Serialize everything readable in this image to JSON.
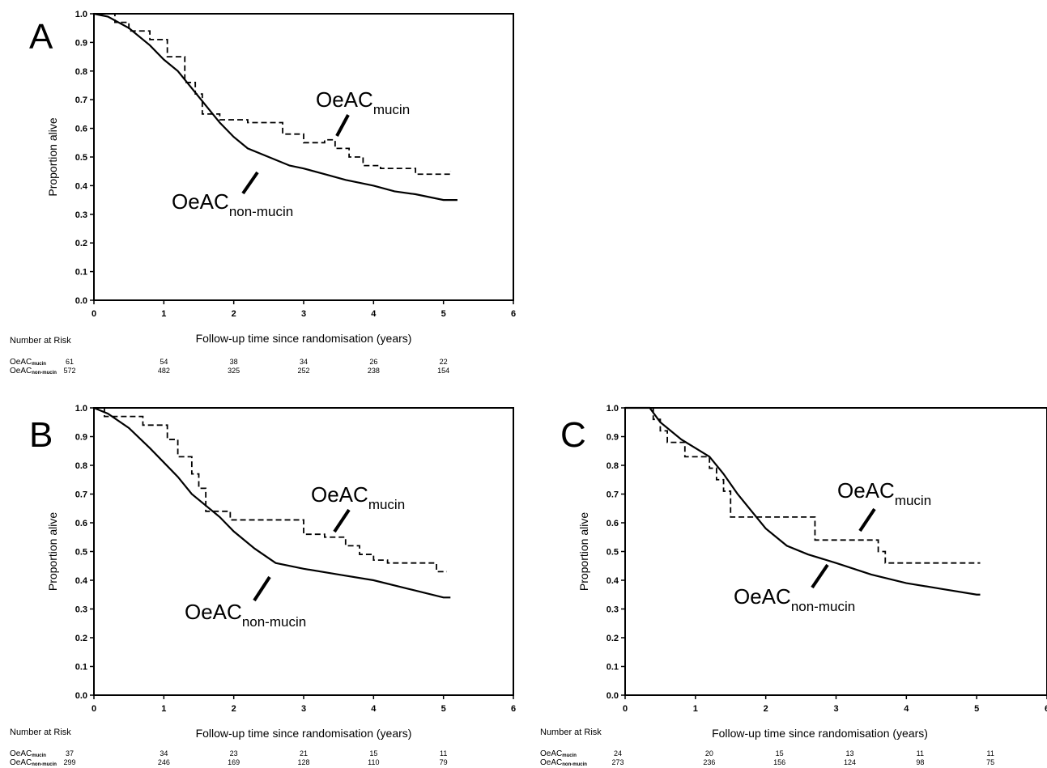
{
  "figure": {
    "ylabel": "Proportion alive",
    "xlabel": "Follow-up time since randomisation (years)",
    "risk_title": "Number at Risk",
    "risk_rows": [
      {
        "name": "OeAC",
        "sub": "mucin"
      },
      {
        "name": "OeAC",
        "sub": "non-mucin"
      }
    ]
  },
  "chart_data": [
    {
      "panel": "A",
      "type": "line",
      "xlabel": "Follow-up time since randomisation (years)",
      "ylabel": "Proportion alive",
      "xlim": [
        0,
        6
      ],
      "ylim": [
        0,
        1
      ],
      "x_ticks": [
        "0",
        "1",
        "2",
        "3",
        "4",
        "5",
        "6"
      ],
      "y_ticks": [
        "0.0",
        "0.1",
        "0.2",
        "0.3",
        "0.4",
        "0.5",
        "0.6",
        "0.7",
        "0.8",
        "0.9",
        "1.0"
      ],
      "annotations": [
        {
          "name": "OeAC",
          "sub": "mucin"
        },
        {
          "name": "OeAC",
          "sub": "non-mucin"
        }
      ],
      "series": [
        {
          "style": "dashed",
          "label_index": 0,
          "step": true,
          "x": [
            0,
            0.3,
            0.5,
            0.8,
            1.05,
            1.3,
            1.45,
            1.55,
            1.8,
            2.2,
            2.7,
            3.0,
            3.3,
            3.45,
            3.65,
            3.85,
            4.1,
            4.6,
            5.1
          ],
          "y": [
            1.0,
            0.97,
            0.94,
            0.91,
            0.85,
            0.76,
            0.72,
            0.65,
            0.63,
            0.62,
            0.58,
            0.55,
            0.56,
            0.53,
            0.5,
            0.47,
            0.46,
            0.44,
            0.45
          ]
        },
        {
          "style": "solid",
          "label_index": 1,
          "step": false,
          "x": [
            0,
            0.2,
            0.5,
            0.8,
            1.0,
            1.2,
            1.4,
            1.6,
            1.8,
            2.0,
            2.2,
            2.5,
            2.8,
            3.0,
            3.3,
            3.6,
            4.0,
            4.3,
            4.6,
            5.0,
            5.2
          ],
          "y": [
            1.0,
            0.99,
            0.95,
            0.89,
            0.84,
            0.8,
            0.74,
            0.68,
            0.62,
            0.57,
            0.53,
            0.5,
            0.47,
            0.46,
            0.44,
            0.42,
            0.4,
            0.38,
            0.37,
            0.35,
            0.35
          ]
        }
      ],
      "at_risk": {
        "mucin": [
          "61",
          "54",
          "38",
          "34",
          "26",
          "22"
        ],
        "non_mucin": [
          "572",
          "482",
          "325",
          "252",
          "238",
          "154"
        ]
      }
    },
    {
      "panel": "B",
      "type": "line",
      "xlabel": "Follow-up time since randomisation (years)",
      "ylabel": "Proportion alive",
      "xlim": [
        0,
        6
      ],
      "ylim": [
        0,
        1
      ],
      "x_ticks": [
        "0",
        "1",
        "2",
        "3",
        "4",
        "5",
        "6"
      ],
      "y_ticks": [
        "0.0",
        "0.1",
        "0.2",
        "0.3",
        "0.4",
        "0.5",
        "0.6",
        "0.7",
        "0.8",
        "0.9",
        "1.0"
      ],
      "annotations": [
        {
          "name": "OeAC",
          "sub": "mucin"
        },
        {
          "name": "OeAC",
          "sub": "non-mucin"
        }
      ],
      "series": [
        {
          "style": "dashed",
          "label_index": 0,
          "step": true,
          "x": [
            0,
            0.15,
            0.35,
            0.7,
            1.05,
            1.2,
            1.4,
            1.5,
            1.6,
            1.95,
            2.35,
            3.0,
            3.3,
            3.6,
            3.8,
            4.0,
            4.2,
            4.5,
            4.9,
            5.05
          ],
          "y": [
            1.0,
            0.97,
            0.97,
            0.94,
            0.89,
            0.83,
            0.77,
            0.72,
            0.64,
            0.61,
            0.61,
            0.56,
            0.55,
            0.52,
            0.49,
            0.47,
            0.46,
            0.46,
            0.43,
            0.43
          ]
        },
        {
          "style": "solid",
          "label_index": 1,
          "step": false,
          "x": [
            0,
            0.2,
            0.5,
            0.8,
            1.0,
            1.2,
            1.4,
            1.6,
            1.8,
            2.0,
            2.3,
            2.6,
            3.0,
            3.5,
            4.0,
            4.5,
            5.0,
            5.1
          ],
          "y": [
            1.0,
            0.98,
            0.93,
            0.86,
            0.81,
            0.76,
            0.7,
            0.66,
            0.62,
            0.57,
            0.51,
            0.46,
            0.44,
            0.42,
            0.4,
            0.37,
            0.34,
            0.34
          ]
        }
      ],
      "at_risk": {
        "mucin": [
          "37",
          "34",
          "23",
          "21",
          "15",
          "11"
        ],
        "non_mucin": [
          "299",
          "246",
          "169",
          "128",
          "110",
          "79"
        ]
      }
    },
    {
      "panel": "C",
      "type": "line",
      "xlabel": "Follow-up time since randomisation (years)",
      "ylabel": "Proportion alive",
      "xlim": [
        0,
        6
      ],
      "ylim": [
        0,
        1
      ],
      "x_ticks": [
        "0",
        "1",
        "2",
        "3",
        "4",
        "5",
        "6"
      ],
      "y_ticks": [
        "0.0",
        "0.1",
        "0.2",
        "0.3",
        "0.4",
        "0.5",
        "0.6",
        "0.7",
        "0.8",
        "0.9",
        "1.0"
      ],
      "annotations": [
        {
          "name": "OeAC",
          "sub": "mucin"
        },
        {
          "name": "OeAC",
          "sub": "non-mucin"
        }
      ],
      "series": [
        {
          "style": "dashed",
          "label_index": 0,
          "step": true,
          "x": [
            0,
            0.4,
            0.5,
            0.6,
            0.85,
            1.2,
            1.3,
            1.4,
            1.5,
            1.9,
            2.7,
            3.6,
            3.7,
            3.8,
            5.05
          ],
          "y": [
            1.0,
            0.96,
            0.92,
            0.88,
            0.83,
            0.79,
            0.75,
            0.71,
            0.62,
            0.62,
            0.54,
            0.5,
            0.46,
            0.46,
            0.46
          ]
        },
        {
          "style": "solid",
          "label_index": 1,
          "step": false,
          "x": [
            0,
            0.35,
            0.5,
            0.8,
            1.0,
            1.2,
            1.4,
            1.6,
            1.8,
            2.0,
            2.3,
            2.6,
            3.0,
            3.5,
            4.0,
            4.5,
            5.0,
            5.05
          ],
          "y": [
            1.0,
            1.0,
            0.95,
            0.89,
            0.86,
            0.83,
            0.77,
            0.7,
            0.64,
            0.58,
            0.52,
            0.49,
            0.46,
            0.42,
            0.39,
            0.37,
            0.35,
            0.35
          ]
        }
      ],
      "at_risk": {
        "mucin": [
          "24",
          "20",
          "15",
          "13",
          "11",
          "11"
        ],
        "non_mucin": [
          "273",
          "236",
          "156",
          "124",
          "98",
          "75"
        ]
      }
    }
  ]
}
